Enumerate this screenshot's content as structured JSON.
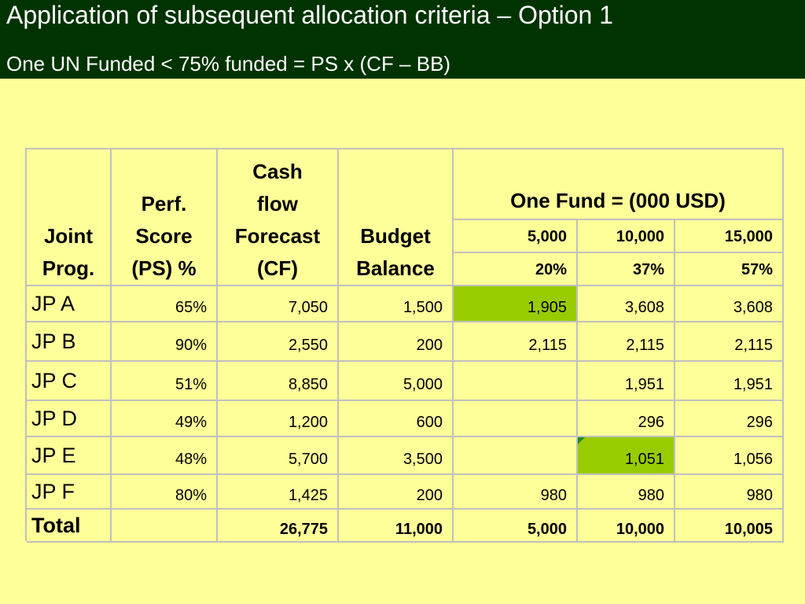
{
  "header": {
    "title": "Application of subsequent allocation criteria – Option 1",
    "subtitle": "One UN Funded < 75% funded = PS x (CF – BB)"
  },
  "table": {
    "headers": {
      "joint": [
        "Joint",
        "Prog."
      ],
      "score": [
        "Perf.",
        "Score",
        "(PS) %"
      ],
      "forecast": [
        "Cash",
        "flow",
        "Forecast",
        "(CF)"
      ],
      "budget": [
        "Budget",
        "Balance"
      ],
      "onefund": "One Fund = (000 USD)",
      "funds": [
        "5,000",
        "10,000",
        "15,000"
      ],
      "percents": [
        "20%",
        "37%",
        "57%"
      ]
    },
    "rows": [
      {
        "name": "JP A",
        "ps": "65%",
        "cf": "7,050",
        "bb": "1,500",
        "f1": "1,905",
        "f2": "3,608",
        "f3": "3,608"
      },
      {
        "name": "JP B",
        "ps": "90%",
        "cf": "2,550",
        "bb": "200",
        "f1": "2,115",
        "f2": "2,115",
        "f3": "2,115"
      },
      {
        "name": "JP C",
        "ps": "51%",
        "cf": "8,850",
        "bb": "5,000",
        "f1": "",
        "f2": "1,951",
        "f3": "1,951"
      },
      {
        "name": "JP D",
        "ps": "49%",
        "cf": "1,200",
        "bb": "600",
        "f1": "",
        "f2": "296",
        "f3": "296"
      },
      {
        "name": "JP E",
        "ps": "48%",
        "cf": "5,700",
        "bb": "3,500",
        "f1": "",
        "f2": "1,051",
        "f3": "1,056"
      },
      {
        "name": "JP F",
        "ps": "80%",
        "cf": "1,425",
        "bb": "200",
        "f1": "980",
        "f2": "980",
        "f3": "980"
      }
    ],
    "total": {
      "name": "Total",
      "ps": "",
      "cf": "26,775",
      "bb": "11,000",
      "f1": "5,000",
      "f2": "10,000",
      "f3": "10,005"
    }
  },
  "colors": {
    "background": "#ffff99",
    "header_bg": "#003300",
    "highlight": "#99cc00",
    "grid": "#c0c0c0"
  }
}
